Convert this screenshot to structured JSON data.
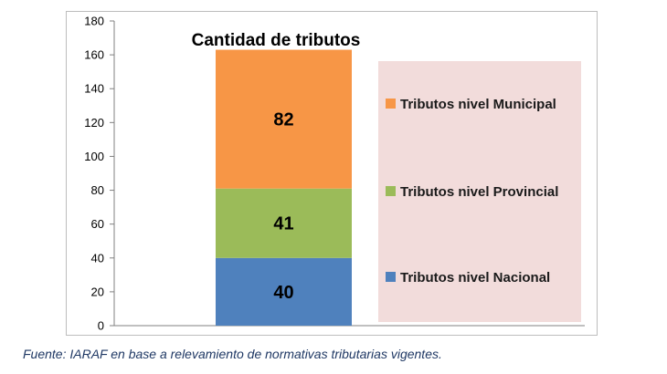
{
  "chart_data": {
    "type": "bar",
    "stacked": true,
    "title": "Cantidad de tributos",
    "categories": [
      ""
    ],
    "series": [
      {
        "name": "Tributos nivel Nacional",
        "values": [
          40
        ],
        "color": "#4f81bd",
        "label": "40"
      },
      {
        "name": "Tributos nivel Provincial",
        "values": [
          41
        ],
        "color": "#9bbb59",
        "label": "41"
      },
      {
        "name": "Tributos nivel Municipal",
        "values": [
          82
        ],
        "color": "#f79646",
        "label": "82"
      }
    ],
    "legend_order": [
      2,
      1,
      0
    ],
    "ylim": [
      0,
      180
    ],
    "yticks": [
      "0",
      "20",
      "40",
      "60",
      "80",
      "100",
      "120",
      "140",
      "160",
      "180"
    ],
    "xlabel": "",
    "ylabel": "",
    "grid": false,
    "legend_position": "right",
    "legend_background": "#f2dcdb"
  },
  "footer": {
    "source": "Fuente: IARAF en base a relevamiento de normativas tributarias vigentes."
  }
}
